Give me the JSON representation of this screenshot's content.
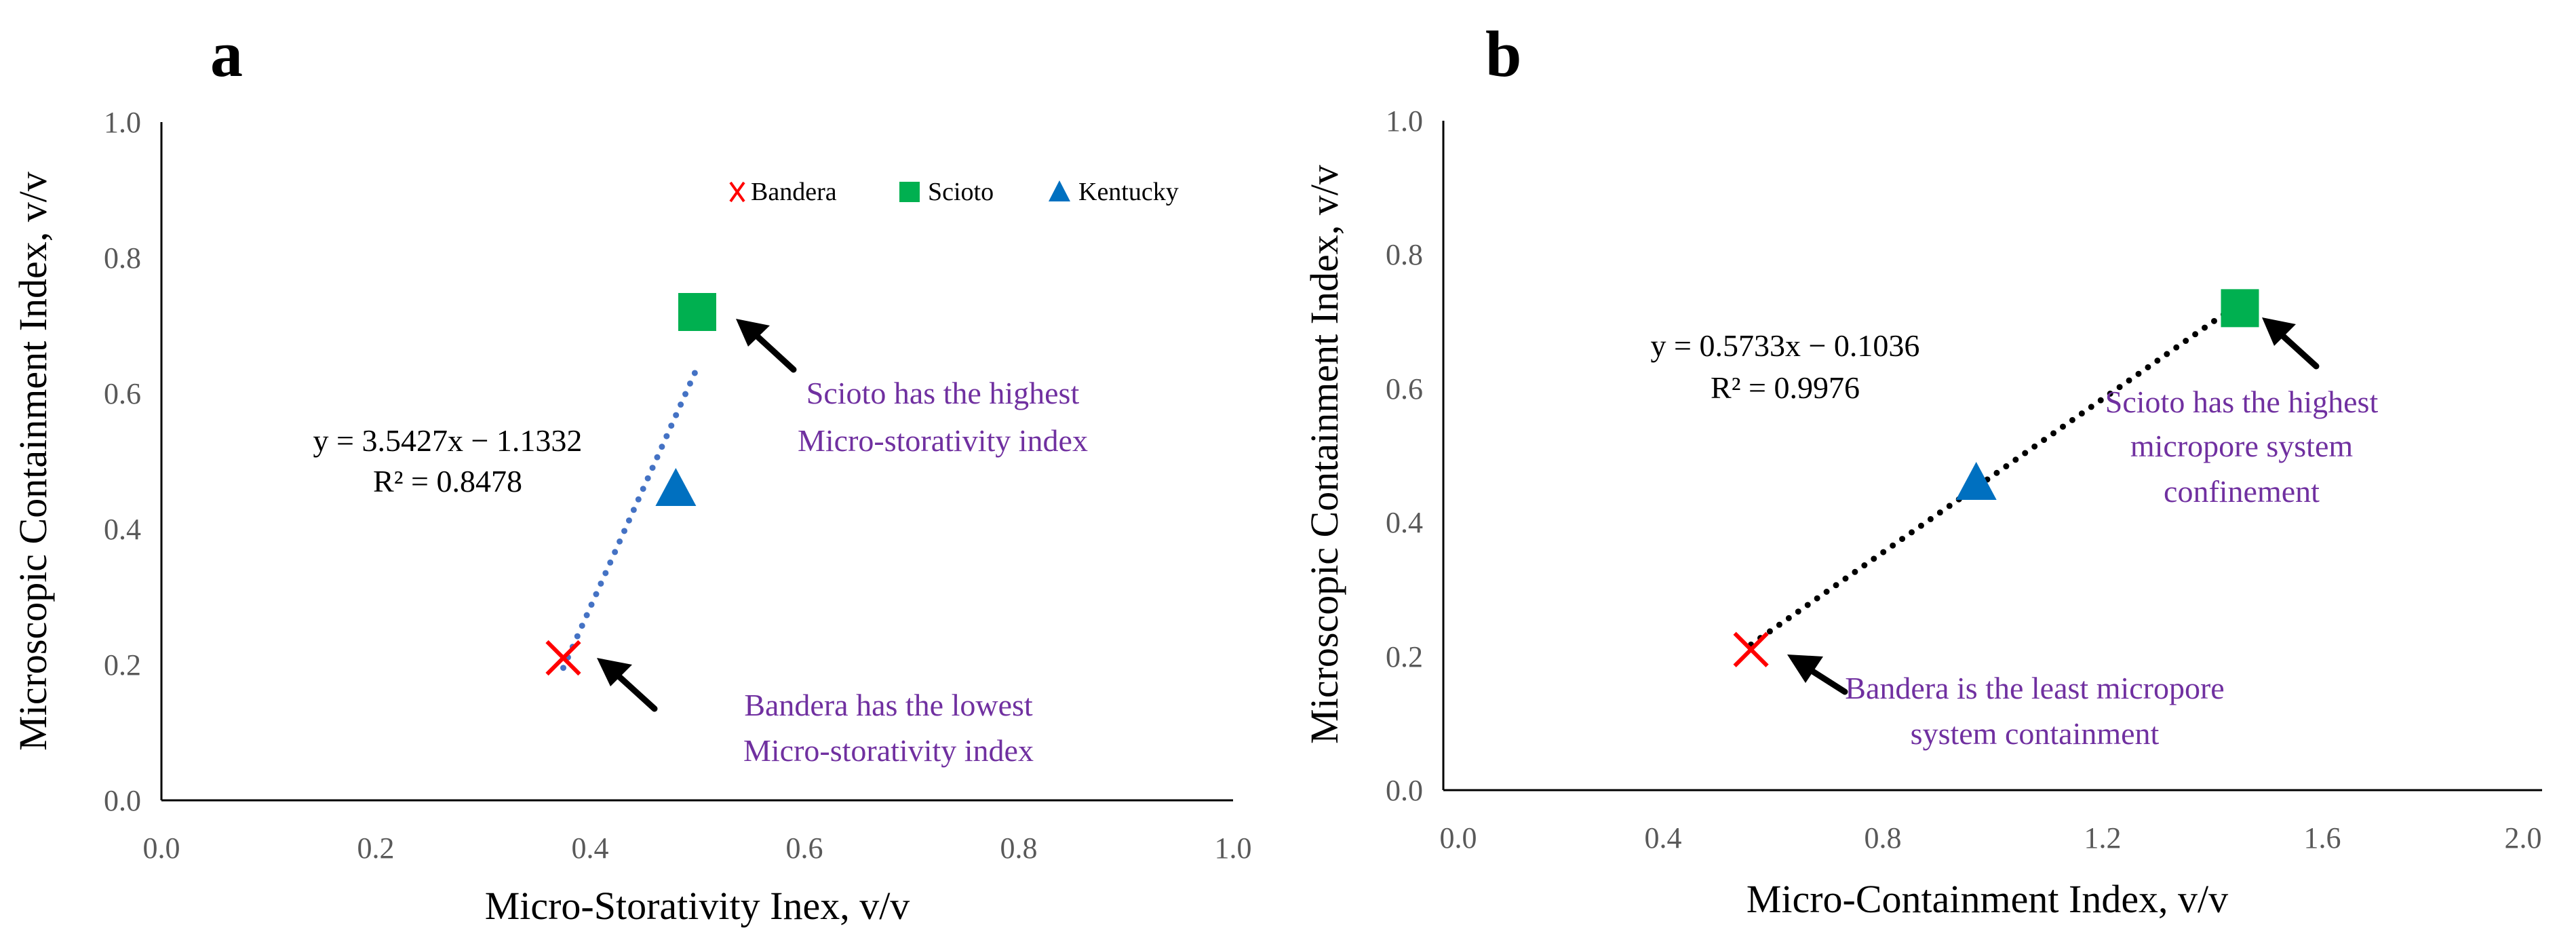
{
  "colors": {
    "bandera": "#ff0000",
    "scioto": "#00b050",
    "kentucky": "#0070c0",
    "trend_a": "#4472c4",
    "trend_b": "#000000",
    "annotation": "#7030a0",
    "axis": "#000000",
    "tick_text": "#595959"
  },
  "chart_data": [
    {
      "panel": "a",
      "type": "scatter",
      "xlabel": "Micro-Storativity Inex, v/v",
      "ylabel": "Microscopic Containment Index, v/v",
      "xlim": [
        0.0,
        1.0
      ],
      "ylim": [
        0.0,
        1.0
      ],
      "xticks": [
        "0.0",
        "0.2",
        "0.4",
        "0.6",
        "0.8",
        "1.0"
      ],
      "yticks": [
        "0.0",
        "0.2",
        "0.4",
        "0.6",
        "0.8",
        "1.0"
      ],
      "grid": false,
      "legend_position": "top-right",
      "legend": [
        "Bandera",
        "Scioto",
        "Kentucky"
      ],
      "series": [
        {
          "name": "Bandera",
          "marker": "x",
          "x": 0.375,
          "y": 0.21
        },
        {
          "name": "Scioto",
          "marker": "square",
          "x": 0.5,
          "y": 0.72
        },
        {
          "name": "Kentucky",
          "marker": "triangle",
          "x": 0.48,
          "y": 0.46
        }
      ],
      "trendline": {
        "slope": 3.5427,
        "intercept": -1.1332,
        "x_range": [
          0.375,
          0.5
        ],
        "style": "dotted",
        "equation": "y = 3.5427x − 1.1332",
        "r2": "R² = 0.8478"
      },
      "annotations": [
        {
          "target": "Scioto",
          "lines": [
            "Scioto has the highest",
            "Micro-storativity index"
          ]
        },
        {
          "target": "Bandera",
          "lines": [
            "Bandera has the lowest",
            "Micro-storativity index"
          ]
        }
      ]
    },
    {
      "panel": "b",
      "type": "scatter",
      "xlabel": "Micro-Containment Index, v/v",
      "ylabel": "Microscopic Containment Index, v/v",
      "xlim": [
        0.0,
        2.0
      ],
      "ylim": [
        0.0,
        1.0
      ],
      "xticks": [
        "0.0",
        "0.4",
        "0.8",
        "1.2",
        "1.6",
        "2.0"
      ],
      "yticks": [
        "0.0",
        "0.2",
        "0.4",
        "0.6",
        "0.8",
        "1.0"
      ],
      "grid": false,
      "series": [
        {
          "name": "Bandera",
          "marker": "x",
          "x": 0.56,
          "y": 0.21
        },
        {
          "name": "Scioto",
          "marker": "square",
          "x": 1.45,
          "y": 0.72
        },
        {
          "name": "Kentucky",
          "marker": "triangle",
          "x": 0.97,
          "y": 0.46
        }
      ],
      "trendline": {
        "slope": 0.5733,
        "intercept": -0.1036,
        "x_range": [
          0.56,
          1.45
        ],
        "style": "dotted",
        "equation": "y = 0.5733x − 0.1036",
        "r2": "R² = 0.9976"
      },
      "annotations": [
        {
          "target": "Scioto",
          "lines": [
            "Scioto has the highest",
            "micropore system",
            "confinement"
          ]
        },
        {
          "target": "Bandera",
          "lines": [
            "Bandera is the least micropore",
            "system containment"
          ]
        }
      ]
    }
  ]
}
